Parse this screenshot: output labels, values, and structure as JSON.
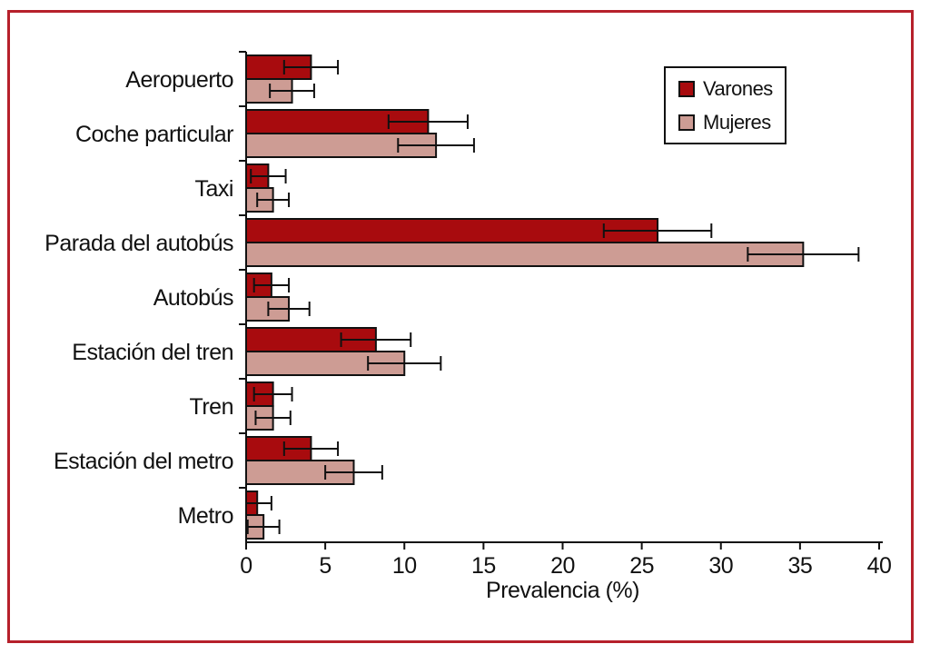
{
  "frame": {
    "border_color": "#b6202b"
  },
  "chart_data": {
    "type": "bar",
    "orientation": "horizontal",
    "title": "",
    "xlabel": "Prevalencia (%)",
    "ylabel": "",
    "xlim": [
      0,
      40
    ],
    "xticks": [
      0,
      5,
      10,
      15,
      20,
      25,
      30,
      35,
      40
    ],
    "grid": false,
    "axis_color": "#111111",
    "categories": [
      "Aeropuerto",
      "Coche particular",
      "Taxi",
      "Parada del autobús",
      "Autobús",
      "Estación del tren",
      "Tren",
      "Estación del metro",
      "Metro"
    ],
    "series": [
      {
        "name": "Varones",
        "color": "#a80b0e",
        "values": [
          4.1,
          11.5,
          1.4,
          26.0,
          1.6,
          8.2,
          1.7,
          4.1,
          0.7
        ],
        "errors": [
          1.7,
          2.5,
          1.1,
          3.4,
          1.1,
          2.2,
          1.2,
          1.7,
          0.9
        ]
      },
      {
        "name": "Mujeres",
        "color": "#cd9c94",
        "values": [
          2.9,
          12.0,
          1.7,
          35.2,
          2.7,
          10.0,
          1.7,
          6.8,
          1.1
        ],
        "errors": [
          1.4,
          2.4,
          1.0,
          3.5,
          1.3,
          2.3,
          1.1,
          1.8,
          1.0
        ]
      }
    ],
    "legend": {
      "position": "top-right",
      "entries": [
        "Varones",
        "Mujeres"
      ]
    }
  }
}
